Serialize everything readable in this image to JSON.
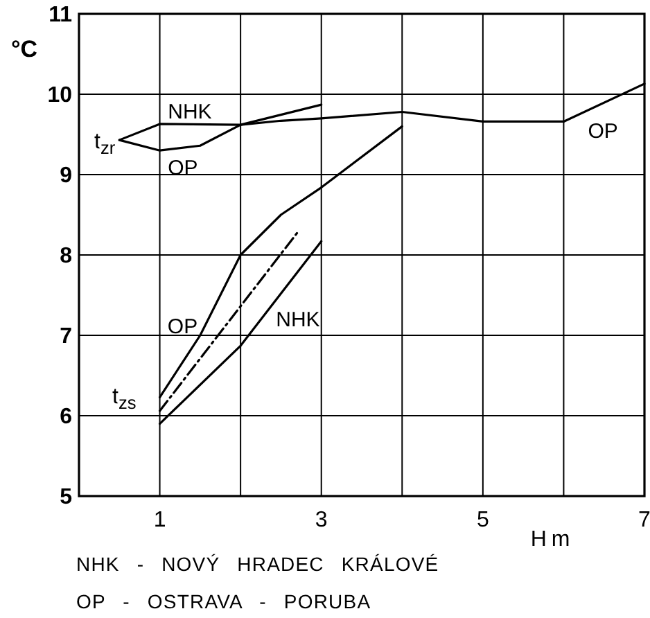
{
  "chart_data": {
    "type": "line",
    "xlabel": "H m",
    "ylabel": "°C",
    "xlim": [
      0,
      7
    ],
    "xticks": [
      1,
      {
        "value": 2,
        "label": null
      },
      3,
      {
        "value": 4,
        "label": null
      },
      5,
      {
        "value": 6,
        "label": null
      },
      7
    ],
    "ylim": [
      5,
      11
    ],
    "yticks": [
      5,
      6,
      7,
      8,
      9,
      10,
      11
    ],
    "grid": true,
    "series": [
      {
        "name": "NHK",
        "color": "#000000",
        "x": [
          0.5,
          1,
          2,
          3
        ],
        "values": [
          9.43,
          9.63,
          9.62,
          9.87
        ]
      },
      {
        "name": "OP",
        "color": "#000000",
        "x": [
          0.5,
          1,
          1.5,
          2,
          2.5,
          3,
          4,
          5,
          6,
          7
        ],
        "values": [
          9.43,
          9.3,
          9.36,
          9.62,
          9.67,
          9.7,
          9.78,
          9.66,
          9.66,
          10.13
        ]
      },
      {
        "name": "OP",
        "color": "#000000",
        "x": [
          1,
          1.5,
          2,
          2.5,
          3,
          4
        ],
        "values": [
          6.23,
          7.0,
          8.0,
          8.5,
          8.84,
          9.6
        ]
      },
      {
        "name": "NHK",
        "color": "#000000",
        "x": [
          1,
          2,
          3
        ],
        "values": [
          5.9,
          6.87,
          8.17
        ]
      },
      {
        "color": "#000000",
        "line_style": "dashed",
        "x": [
          1,
          2.72
        ],
        "values": [
          6.06,
          8.3
        ]
      }
    ],
    "annotations": [
      {
        "text": "t$_{zr}$",
        "x": 0.5,
        "y": 9.43
      },
      {
        "text": "t$_{zs}$",
        "x": 1,
        "y": 6
      },
      "NHK - NOVÝ HRADEC KRÁLOVÉ",
      "OP - OSTRAVA - PORUBA"
    ]
  }
}
